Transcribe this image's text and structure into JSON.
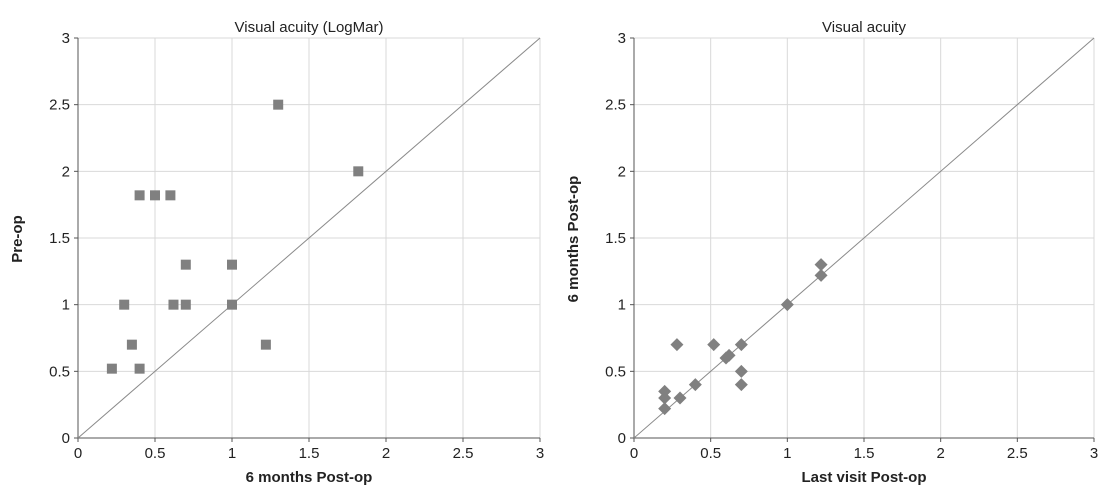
{
  "chart_data": [
    {
      "type": "scatter",
      "title": "Visual acuity (LogMar)",
      "xlabel": "6 months Post-op",
      "ylabel": "Pre-op",
      "xlim": [
        0,
        3
      ],
      "ylim": [
        0,
        3
      ],
      "x_ticks": [
        "0",
        "0.5",
        "1",
        "1.5",
        "2",
        "2.5",
        "3"
      ],
      "y_ticks": [
        "0",
        "0.5",
        "1",
        "1.5",
        "2",
        "2.5",
        "3"
      ],
      "grid": true,
      "reference_line": "y = x",
      "marker": "square",
      "marker_color": "#808080",
      "points": [
        {
          "x": 0.22,
          "y": 0.52
        },
        {
          "x": 0.3,
          "y": 1.0
        },
        {
          "x": 0.35,
          "y": 0.7
        },
        {
          "x": 0.4,
          "y": 0.52
        },
        {
          "x": 0.4,
          "y": 1.82
        },
        {
          "x": 0.5,
          "y": 1.82
        },
        {
          "x": 0.6,
          "y": 1.82
        },
        {
          "x": 0.62,
          "y": 1.0
        },
        {
          "x": 0.7,
          "y": 1.3
        },
        {
          "x": 0.7,
          "y": 1.0
        },
        {
          "x": 1.0,
          "y": 1.3
        },
        {
          "x": 1.0,
          "y": 1.0
        },
        {
          "x": 1.22,
          "y": 0.7
        },
        {
          "x": 1.3,
          "y": 2.5
        },
        {
          "x": 1.82,
          "y": 2.0
        }
      ]
    },
    {
      "type": "scatter",
      "title": "Visual acuity",
      "xlabel": "Last visit Post-op",
      "ylabel": "6 months Post-op",
      "xlim": [
        0,
        3
      ],
      "ylim": [
        0,
        3
      ],
      "x_ticks": [
        "0",
        "0.5",
        "1",
        "1.5",
        "2",
        "2.5",
        "3"
      ],
      "y_ticks": [
        "0",
        "0.5",
        "1",
        "1.5",
        "2",
        "2.5",
        "3"
      ],
      "grid": true,
      "reference_line": "y = x",
      "marker": "diamond",
      "marker_color": "#808080",
      "points": [
        {
          "x": 0.2,
          "y": 0.35
        },
        {
          "x": 0.2,
          "y": 0.3
        },
        {
          "x": 0.2,
          "y": 0.22
        },
        {
          "x": 0.28,
          "y": 0.7
        },
        {
          "x": 0.3,
          "y": 0.3
        },
        {
          "x": 0.4,
          "y": 0.4
        },
        {
          "x": 0.52,
          "y": 0.7
        },
        {
          "x": 0.6,
          "y": 0.6
        },
        {
          "x": 0.62,
          "y": 0.62
        },
        {
          "x": 0.7,
          "y": 0.7
        },
        {
          "x": 0.7,
          "y": 0.5
        },
        {
          "x": 0.7,
          "y": 0.4
        },
        {
          "x": 1.0,
          "y": 1.0
        },
        {
          "x": 1.22,
          "y": 1.3
        },
        {
          "x": 1.22,
          "y": 1.22
        }
      ]
    }
  ]
}
